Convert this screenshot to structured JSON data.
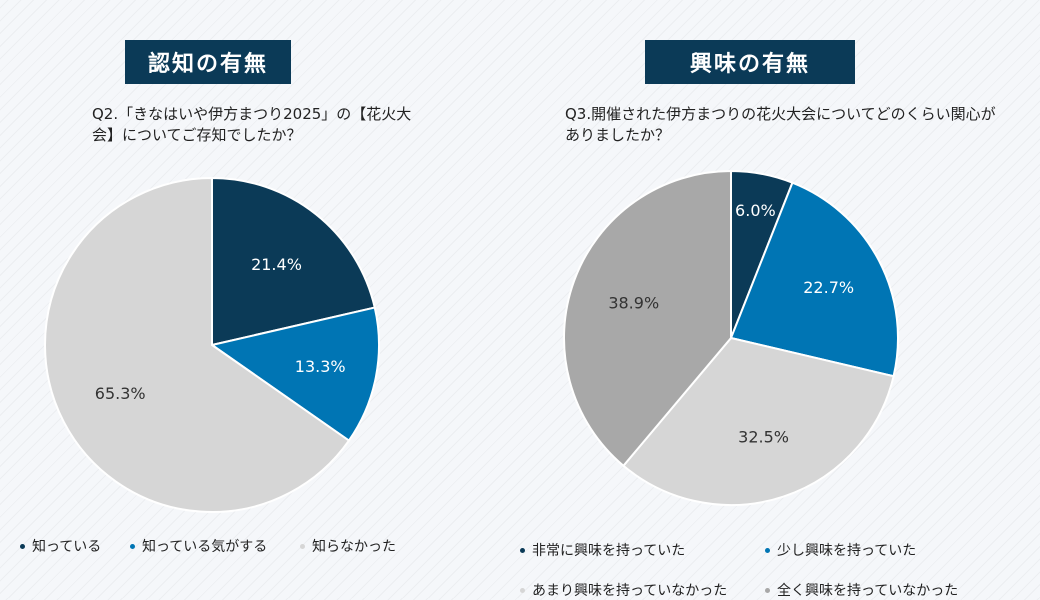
{
  "colors": {
    "navy": "#0b3a57",
    "blue": "#0075b4",
    "light_gray": "#d6d6d6",
    "mid_gray": "#a8a8a8"
  },
  "chart_data": [
    {
      "type": "pie",
      "title": "認知の有無",
      "question": "Q2.「きなはいや伊方まつり2025」の【花火大会】についてご存知でしたか？",
      "labels": [
        "知っている",
        "知っている気がする",
        "知らなかった"
      ],
      "values": [
        21.4,
        13.3,
        65.3
      ],
      "value_labels": [
        "21.4%",
        "13.3%",
        "65.3%"
      ],
      "colors": [
        "#0b3a57",
        "#0075b4",
        "#d6d6d6"
      ],
      "legend": "bottom"
    },
    {
      "type": "pie",
      "title": "興味の有無",
      "question": "Q3.開催された伊方まつりの花火大会についてどのくらい関心がありましたか？",
      "labels": [
        "非常に興味を持っていた",
        "少し興味を持っていた",
        "あまり興味を持っていなかった",
        "全く興味を持っていなかった"
      ],
      "values": [
        6.0,
        22.7,
        32.5,
        38.9
      ],
      "value_labels": [
        "6.0%",
        "22.7%",
        "32.5%",
        "38.9%"
      ],
      "colors": [
        "#0b3a57",
        "#0075b4",
        "#d6d6d6",
        "#a8a8a8"
      ],
      "legend": "bottom"
    }
  ]
}
